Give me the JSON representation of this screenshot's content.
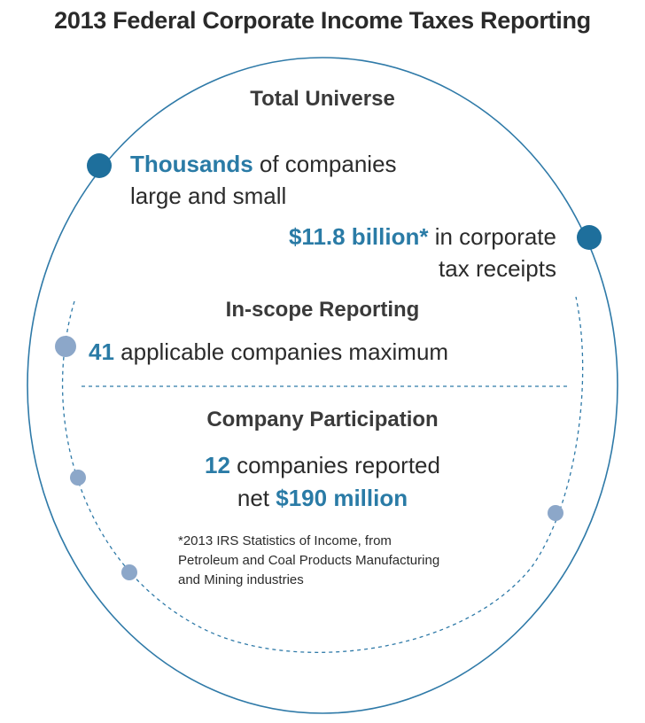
{
  "title": "2013 Federal Corporate Income Taxes Reporting",
  "colors": {
    "accent": "#2a7ba6",
    "outline": "#2f7aa8",
    "light_dot": "#8ca7c9",
    "text": "#2b2b2b"
  },
  "universe": {
    "heading": "Total Universe",
    "line1_accent": "Thousands",
    "line1_rest": " of companies",
    "line2": "large and small",
    "receipts_accent": "$11.8 billion*",
    "receipts_rest": " in corporate",
    "receipts_line2": "tax receipts"
  },
  "inscope": {
    "heading": "In-scope Reporting",
    "count": "41",
    "rest": " applicable companies maximum"
  },
  "participation": {
    "heading": "Company Participation",
    "count": "12",
    "line1_rest": " companies reported",
    "line2_pre": "net ",
    "amount": "$190 million"
  },
  "footnote": {
    "line1": "*2013 IRS Statistics of Income, from",
    "line2": "Petroleum and Coal Products Manufacturing",
    "line3": "and Mining industries"
  }
}
